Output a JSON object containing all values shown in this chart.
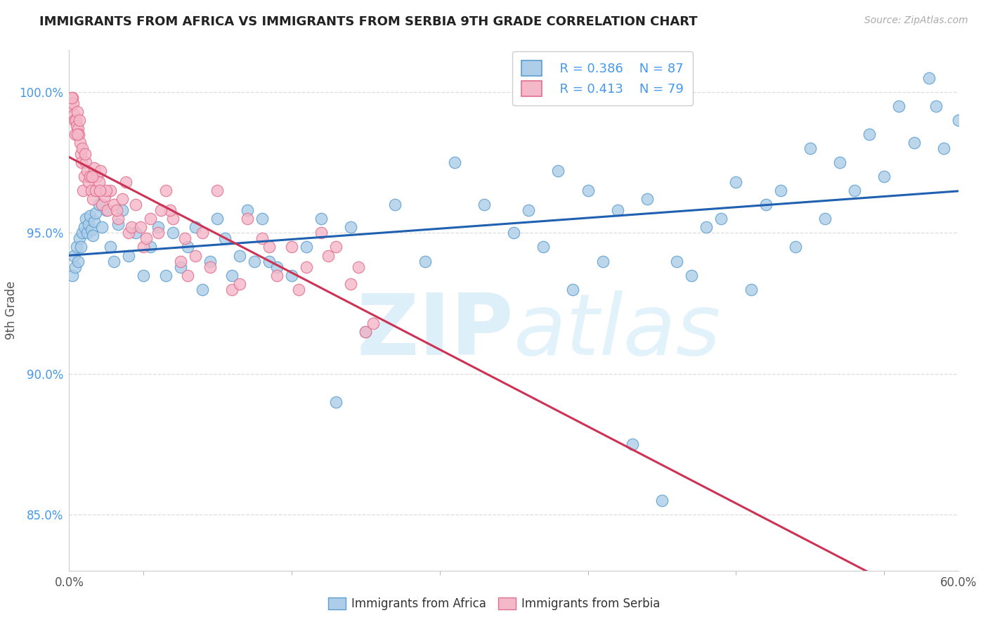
{
  "title": "IMMIGRANTS FROM AFRICA VS IMMIGRANTS FROM SERBIA 9TH GRADE CORRELATION CHART",
  "source": "Source: ZipAtlas.com",
  "xlabel_africa": "Immigrants from Africa",
  "xlabel_serbia": "Immigrants from Serbia",
  "ylabel": "9th Grade",
  "xlim": [
    0.0,
    60.0
  ],
  "ylim": [
    83.0,
    101.5
  ],
  "yticks": [
    85.0,
    90.0,
    95.0,
    100.0
  ],
  "ytick_labels": [
    "85.0%",
    "90.0%",
    "95.0%",
    "100.0%"
  ],
  "legend_R_africa": "R = 0.386",
  "legend_N_africa": "N = 87",
  "legend_R_serbia": "R = 0.413",
  "legend_N_serbia": "N = 79",
  "africa_fill": "#aecde8",
  "africa_edge": "#5b9ecf",
  "serbia_fill": "#f5b8c8",
  "serbia_edge": "#e07090",
  "africa_line": "#2060b0",
  "serbia_line": "#cc3355",
  "watermark_color": [
    0.78,
    0.9,
    0.97
  ],
  "legend_text_color": "#4499ee",
  "title_color": "#222222",
  "source_color": "#aaaaaa",
  "ytick_color": "#4499ee",
  "xtick_color": "#555555",
  "grid_color": "#dddddd",
  "africa_x": [
    0.2,
    0.3,
    0.4,
    0.5,
    0.6,
    0.7,
    0.8,
    0.9,
    1.0,
    1.1,
    1.2,
    1.3,
    1.4,
    1.5,
    1.6,
    1.7,
    1.8,
    2.0,
    2.2,
    2.5,
    2.8,
    3.0,
    3.3,
    3.6,
    4.0,
    4.5,
    5.0,
    5.5,
    6.0,
    6.5,
    7.0,
    7.5,
    8.0,
    8.5,
    9.0,
    9.5,
    10.0,
    10.5,
    11.0,
    11.5,
    12.0,
    12.5,
    13.0,
    13.5,
    14.0,
    15.0,
    16.0,
    17.0,
    18.0,
    19.0,
    20.0,
    22.0,
    24.0,
    26.0,
    28.0,
    30.0,
    32.0,
    34.0,
    36.0,
    38.0,
    40.0,
    42.0,
    44.0,
    46.0,
    48.0,
    50.0,
    52.0,
    54.0,
    56.0,
    58.0,
    59.0,
    60.0,
    58.5,
    57.0,
    55.0,
    53.0,
    51.0,
    49.0,
    47.0,
    45.0,
    43.0,
    41.0,
    39.0,
    37.0,
    35.0,
    33.0,
    31.0
  ],
  "africa_y": [
    93.5,
    94.2,
    93.8,
    94.5,
    94.0,
    94.8,
    94.5,
    95.0,
    95.2,
    95.5,
    95.0,
    95.3,
    95.6,
    95.1,
    94.9,
    95.4,
    95.7,
    96.0,
    95.2,
    95.8,
    94.5,
    94.0,
    95.3,
    95.8,
    94.2,
    95.0,
    93.5,
    94.5,
    95.2,
    93.5,
    95.0,
    93.8,
    94.5,
    95.2,
    93.0,
    94.0,
    95.5,
    94.8,
    93.5,
    94.2,
    95.8,
    94.0,
    95.5,
    94.0,
    93.8,
    93.5,
    94.5,
    95.5,
    89.0,
    95.2,
    91.5,
    96.0,
    94.0,
    97.5,
    96.0,
    95.0,
    94.5,
    93.0,
    94.0,
    87.5,
    85.5,
    93.5,
    95.5,
    93.0,
    96.5,
    98.0,
    97.5,
    98.5,
    99.5,
    100.5,
    98.0,
    99.0,
    99.5,
    98.2,
    97.0,
    96.5,
    95.5,
    94.5,
    96.0,
    96.8,
    95.2,
    94.0,
    96.2,
    95.8,
    96.5,
    97.2,
    95.8
  ],
  "serbia_x": [
    0.1,
    0.2,
    0.25,
    0.3,
    0.35,
    0.4,
    0.45,
    0.5,
    0.55,
    0.6,
    0.65,
    0.7,
    0.75,
    0.8,
    0.85,
    0.9,
    0.95,
    1.0,
    1.1,
    1.2,
    1.3,
    1.4,
    1.5,
    1.6,
    1.7,
    1.8,
    1.9,
    2.0,
    2.2,
    2.4,
    2.6,
    2.8,
    3.0,
    3.3,
    3.6,
    4.0,
    4.5,
    5.0,
    5.5,
    6.0,
    6.5,
    7.0,
    7.5,
    8.0,
    9.0,
    10.0,
    11.0,
    12.0,
    13.0,
    14.0,
    15.0,
    16.0,
    17.0,
    18.0,
    19.0,
    20.0,
    3.8,
    4.2,
    2.1,
    2.5,
    5.2,
    6.8,
    8.5,
    0.15,
    0.55,
    1.05,
    1.55,
    2.05,
    3.2,
    4.8,
    6.2,
    7.8,
    9.5,
    11.5,
    13.5,
    15.5,
    17.5,
    19.5,
    20.5
  ],
  "serbia_y": [
    99.5,
    99.8,
    99.6,
    99.2,
    99.0,
    98.5,
    99.0,
    98.8,
    99.3,
    98.7,
    98.5,
    99.0,
    98.2,
    97.8,
    97.5,
    98.0,
    96.5,
    97.0,
    97.5,
    97.2,
    96.8,
    97.0,
    96.5,
    96.2,
    97.3,
    96.5,
    97.0,
    96.8,
    96.0,
    96.3,
    95.8,
    96.5,
    96.0,
    95.5,
    96.2,
    95.0,
    96.0,
    94.5,
    95.5,
    95.0,
    96.5,
    95.5,
    94.0,
    93.5,
    95.0,
    96.5,
    93.0,
    95.5,
    94.8,
    93.5,
    94.5,
    93.8,
    95.0,
    94.5,
    93.2,
    91.5,
    96.8,
    95.2,
    97.2,
    96.5,
    94.8,
    95.8,
    94.2,
    99.8,
    98.5,
    97.8,
    97.0,
    96.5,
    95.8,
    95.2,
    95.8,
    94.8,
    93.8,
    93.2,
    94.5,
    93.0,
    94.2,
    93.8,
    91.8
  ]
}
